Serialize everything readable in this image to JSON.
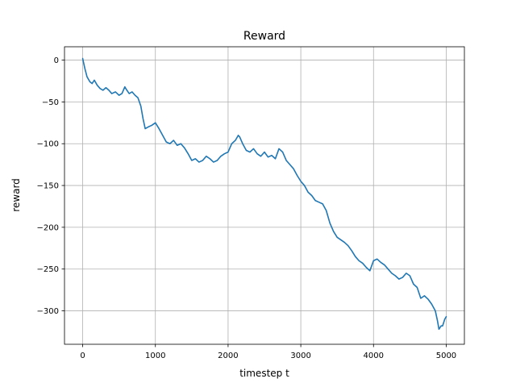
{
  "chart_data": {
    "type": "line",
    "title": "Reward",
    "xlabel": "timestep t",
    "ylabel": "reward",
    "xlim": [
      -250,
      5250
    ],
    "ylim": [
      -340,
      16
    ],
    "x_ticks": [
      0,
      1000,
      2000,
      3000,
      4000,
      5000
    ],
    "x_tick_labels": [
      "0",
      "1000",
      "2000",
      "3000",
      "4000",
      "5000"
    ],
    "y_ticks": [
      0,
      -50,
      -100,
      -150,
      -200,
      -250,
      -300
    ],
    "y_tick_labels": [
      "0",
      "−50",
      "−100",
      "−150",
      "−200",
      "−250",
      "−300"
    ],
    "grid": true,
    "colors": {
      "line": "#1f77b4",
      "grid": "#b0b0b0",
      "axes": "#000000"
    },
    "series": [
      {
        "x": [
          0,
          30,
          60,
          100,
          130,
          160,
          200,
          240,
          280,
          320,
          360,
          400,
          450,
          500,
          540,
          580,
          600,
          640,
          680,
          720,
          760,
          800,
          830,
          860,
          900,
          950,
          1000,
          1050,
          1100,
          1150,
          1200,
          1250,
          1300,
          1350,
          1400,
          1450,
          1500,
          1550,
          1600,
          1650,
          1700,
          1750,
          1800,
          1850,
          1900,
          1950,
          2000,
          2050,
          2100,
          2140,
          2160,
          2200,
          2250,
          2300,
          2350,
          2400,
          2450,
          2500,
          2550,
          2600,
          2650,
          2700,
          2750,
          2800,
          2850,
          2900,
          2950,
          3000,
          3050,
          3100,
          3150,
          3200,
          3250,
          3300,
          3350,
          3400,
          3450,
          3500,
          3550,
          3600,
          3650,
          3700,
          3750,
          3800,
          3850,
          3900,
          3950,
          4000,
          4050,
          4100,
          4150,
          4200,
          4250,
          4300,
          4350,
          4400,
          4450,
          4500,
          4550,
          4600,
          4650,
          4700,
          4750,
          4800,
          4850,
          4880,
          4900,
          4930,
          4950,
          4980,
          5000
        ],
        "y": [
          2,
          -10,
          -20,
          -26,
          -28,
          -24,
          -30,
          -34,
          -36,
          -33,
          -36,
          -40,
          -38,
          -42,
          -40,
          -32,
          -35,
          -40,
          -38,
          -42,
          -45,
          -55,
          -70,
          -82,
          -80,
          -78,
          -75,
          -82,
          -90,
          -98,
          -100,
          -96,
          -102,
          -100,
          -105,
          -112,
          -120,
          -118,
          -122,
          -120,
          -115,
          -118,
          -122,
          -120,
          -115,
          -112,
          -110,
          -100,
          -96,
          -90,
          -92,
          -100,
          -108,
          -110,
          -106,
          -112,
          -115,
          -110,
          -116,
          -114,
          -118,
          -106,
          -110,
          -120,
          -125,
          -130,
          -138,
          -145,
          -150,
          -158,
          -162,
          -168,
          -170,
          -172,
          -180,
          -195,
          -205,
          -212,
          -215,
          -218,
          -222,
          -228,
          -235,
          -240,
          -243,
          -248,
          -252,
          -240,
          -238,
          -242,
          -245,
          -250,
          -255,
          -258,
          -262,
          -260,
          -255,
          -258,
          -268,
          -272,
          -285,
          -282,
          -286,
          -292,
          -300,
          -312,
          -322,
          -318,
          -318,
          -310,
          -307
        ]
      }
    ]
  }
}
